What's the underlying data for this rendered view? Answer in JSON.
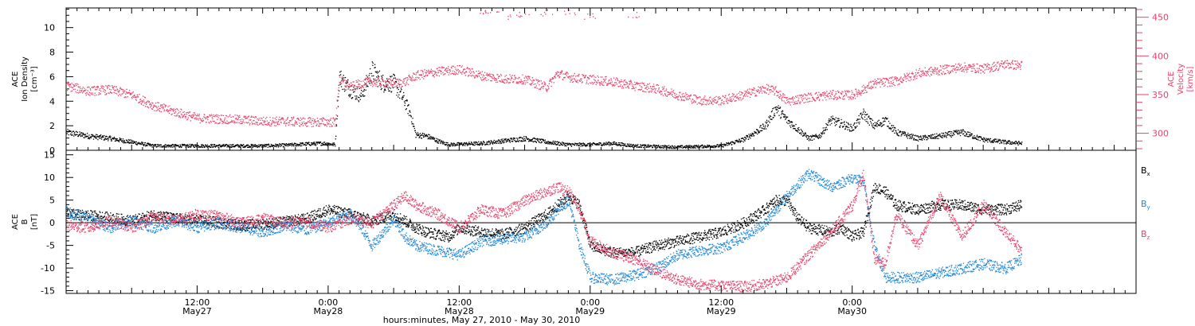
{
  "colors": {
    "black": "#000000",
    "red": "#e8436b",
    "blue": "#1f86d8"
  },
  "chart_data": [
    {
      "type": "scatter",
      "panel": "top",
      "ylabel_lines": [
        "ACE",
        "Ion Density",
        "[cm⁻³]"
      ],
      "y2label_lines": [
        "ACE",
        "Velocity",
        "[km/s]"
      ],
      "ylim": [
        0,
        11.6
      ],
      "yticks": [
        0,
        2,
        4,
        6,
        8,
        10
      ],
      "y2lim": [
        278,
        462
      ],
      "y2ticks": [
        300,
        350,
        400,
        450
      ],
      "series": [
        {
          "key": "density",
          "axis": "left",
          "color": "#000000",
          "density": 3,
          "points": [
            [
              0,
              1.5
            ],
            [
              2,
              1.2
            ],
            [
              4,
              1.0
            ],
            [
              6,
              0.7
            ],
            [
              8,
              0.4
            ],
            [
              10,
              0.4
            ],
            [
              14,
              0.4
            ],
            [
              18,
              0.4
            ],
            [
              20,
              0.45
            ],
            [
              22,
              0.55
            ],
            [
              23.5,
              0.6
            ],
            [
              24.6,
              0.5
            ],
            [
              25,
              6.0
            ],
            [
              26,
              5.0
            ],
            [
              27,
              4.5
            ],
            [
              28,
              6.5
            ],
            [
              29,
              5.5
            ],
            [
              30,
              5.5
            ],
            [
              31,
              4.0
            ],
            [
              31.5,
              3.0
            ],
            [
              32,
              1.3
            ],
            [
              33,
              1.2
            ],
            [
              34,
              0.8
            ],
            [
              35,
              0.5
            ],
            [
              38,
              0.6
            ],
            [
              40,
              0.8
            ],
            [
              42,
              1.0
            ],
            [
              44,
              0.7
            ],
            [
              46,
              0.5
            ],
            [
              48,
              0.5
            ],
            [
              50,
              0.6
            ],
            [
              52,
              0.4
            ],
            [
              56,
              0.3
            ],
            [
              60,
              0.4
            ],
            [
              62,
              0.9
            ],
            [
              64,
              2.0
            ],
            [
              65,
              3.5
            ],
            [
              66,
              2.5
            ],
            [
              68,
              1.0
            ],
            [
              69,
              1.2
            ],
            [
              70,
              2.5
            ],
            [
              71,
              2.2
            ],
            [
              72,
              1.8
            ],
            [
              73,
              3.0
            ],
            [
              74,
              2.0
            ],
            [
              75,
              2.5
            ],
            [
              76,
              1.5
            ],
            [
              78,
              1.0
            ],
            [
              80,
              1.2
            ],
            [
              82,
              1.5
            ],
            [
              84,
              0.9
            ],
            [
              86,
              0.7
            ],
            [
              87.5,
              0.6
            ]
          ]
        },
        {
          "key": "velocity",
          "axis": "right",
          "color": "#e8436b",
          "density": 3,
          "points": [
            [
              0,
              362
            ],
            [
              2,
              355
            ],
            [
              4,
              357
            ],
            [
              6,
              350
            ],
            [
              8,
              336
            ],
            [
              10,
              328
            ],
            [
              12,
              320
            ],
            [
              14,
              319
            ],
            [
              16,
              318
            ],
            [
              18,
              316
            ],
            [
              20,
              316
            ],
            [
              22,
              315
            ],
            [
              24.6,
              315
            ],
            [
              25,
              370
            ],
            [
              26,
              360
            ],
            [
              27,
              365
            ],
            [
              28,
              367
            ],
            [
              29,
              366
            ],
            [
              30,
              365
            ],
            [
              31,
              367
            ],
            [
              32,
              375
            ],
            [
              34,
              380
            ],
            [
              36,
              383
            ],
            [
              38,
              375
            ],
            [
              40,
              371
            ],
            [
              42,
              370
            ],
            [
              44,
              360
            ],
            [
              45,
              378
            ],
            [
              46,
              373
            ],
            [
              48,
              370
            ],
            [
              50,
              367
            ],
            [
              52,
              362
            ],
            [
              54,
              358
            ],
            [
              56,
              350
            ],
            [
              58,
              343
            ],
            [
              60,
              343
            ],
            [
              62,
              350
            ],
            [
              64,
              358
            ],
            [
              65,
              355
            ],
            [
              66,
              342
            ],
            [
              68,
              347
            ],
            [
              70,
              350
            ],
            [
              72,
              350
            ],
            [
              73,
              357
            ],
            [
              74,
              365
            ],
            [
              76,
              368
            ],
            [
              78,
              378
            ],
            [
              80,
              382
            ],
            [
              82,
              386
            ],
            [
              84,
              384
            ],
            [
              86,
              390
            ],
            [
              87.5,
              388
            ]
          ]
        }
      ],
      "sparse_points": [
        [
          38,
          457
        ],
        [
          39,
          455
        ],
        [
          41,
          450
        ],
        [
          42,
          455
        ],
        [
          44,
          456
        ],
        [
          46,
          457
        ],
        [
          48,
          452
        ],
        [
          52,
          453
        ]
      ]
    },
    {
      "type": "scatter",
      "panel": "bottom",
      "ylabel_lines": [
        "ACE",
        "B",
        "[nT]"
      ],
      "ylim": [
        -15.6,
        16
      ],
      "yticks": [
        -15,
        -10,
        -5,
        0,
        5,
        10,
        15
      ],
      "series": [
        {
          "name": "Bx",
          "color": "#000000",
          "density": 4,
          "points": [
            [
              0,
              2
            ],
            [
              3,
              1.5
            ],
            [
              6,
              0.5
            ],
            [
              8,
              1.8
            ],
            [
              10,
              1
            ],
            [
              13,
              0.5
            ],
            [
              16,
              -0.5
            ],
            [
              19,
              0
            ],
            [
              22,
              1
            ],
            [
              24,
              3
            ],
            [
              26,
              2
            ],
            [
              28,
              0.5
            ],
            [
              30,
              2
            ],
            [
              32,
              -1
            ],
            [
              33,
              -2
            ],
            [
              35,
              -3
            ],
            [
              36,
              -1
            ],
            [
              38,
              -2
            ],
            [
              40,
              -2.5
            ],
            [
              42,
              -1
            ],
            [
              44,
              2
            ],
            [
              46,
              6
            ],
            [
              47,
              4
            ],
            [
              48,
              -5
            ],
            [
              50,
              -6.5
            ],
            [
              52,
              -6.5
            ],
            [
              54,
              -5
            ],
            [
              56,
              -4
            ],
            [
              58,
              -3
            ],
            [
              60,
              -2
            ],
            [
              62,
              0
            ],
            [
              64,
              3
            ],
            [
              65,
              5
            ],
            [
              66,
              5
            ],
            [
              67,
              1
            ],
            [
              68,
              -1
            ],
            [
              70,
              -2
            ],
            [
              71,
              -1
            ],
            [
              72,
              -3
            ],
            [
              73,
              -2
            ],
            [
              74,
              8
            ],
            [
              75,
              7
            ],
            [
              76,
              4
            ],
            [
              78,
              3
            ],
            [
              80,
              4
            ],
            [
              82,
              4
            ],
            [
              84,
              3
            ],
            [
              86,
              3
            ],
            [
              87.5,
              4
            ]
          ]
        },
        {
          "name": "By",
          "color": "#1f86d8",
          "density": 4,
          "points": [
            [
              0,
              2.5
            ],
            [
              2,
              1
            ],
            [
              4,
              -1
            ],
            [
              6,
              0.5
            ],
            [
              8,
              -1
            ],
            [
              10,
              0.5
            ],
            [
              12,
              -1
            ],
            [
              14,
              0
            ],
            [
              16,
              -1
            ],
            [
              18,
              -2
            ],
            [
              20,
              -0.5
            ],
            [
              22,
              -1.5
            ],
            [
              24,
              0
            ],
            [
              26,
              2
            ],
            [
              27,
              -1
            ],
            [
              28,
              -5
            ],
            [
              30,
              1
            ],
            [
              31,
              -3
            ],
            [
              32,
              -5
            ],
            [
              34,
              -6
            ],
            [
              36,
              -7
            ],
            [
              38,
              -4
            ],
            [
              40,
              -3.5
            ],
            [
              42,
              -3
            ],
            [
              44,
              0
            ],
            [
              45,
              3
            ],
            [
              46,
              5
            ],
            [
              47,
              -5
            ],
            [
              48,
              -12
            ],
            [
              50,
              -12.5
            ],
            [
              52,
              -11.5
            ],
            [
              54,
              -10
            ],
            [
              56,
              -7
            ],
            [
              58,
              -6
            ],
            [
              60,
              -5.5
            ],
            [
              62,
              -3
            ],
            [
              64,
              0
            ],
            [
              66,
              6
            ],
            [
              68,
              11
            ],
            [
              70,
              8
            ],
            [
              72,
              10
            ],
            [
              73,
              9
            ],
            [
              74,
              -5
            ],
            [
              75,
              -12
            ],
            [
              76,
              -12
            ],
            [
              78,
              -12
            ],
            [
              80,
              -11
            ],
            [
              82,
              -10
            ],
            [
              84,
              -9
            ],
            [
              86,
              -10
            ],
            [
              87.5,
              -8
            ]
          ]
        },
        {
          "name": "Bz",
          "color": "#e8436b",
          "density": 4,
          "points": [
            [
              0,
              -0.5
            ],
            [
              2,
              -1
            ],
            [
              4,
              0.5
            ],
            [
              6,
              -1
            ],
            [
              8,
              1.5
            ],
            [
              10,
              0.5
            ],
            [
              12,
              2
            ],
            [
              14,
              1.5
            ],
            [
              16,
              0
            ],
            [
              18,
              1
            ],
            [
              20,
              0
            ],
            [
              22,
              0.5
            ],
            [
              24,
              -1
            ],
            [
              26,
              1
            ],
            [
              28,
              0
            ],
            [
              30,
              4
            ],
            [
              31,
              6
            ],
            [
              32,
              4
            ],
            [
              34,
              2
            ],
            [
              36,
              -1
            ],
            [
              38,
              3
            ],
            [
              40,
              2
            ],
            [
              42,
              5
            ],
            [
              44,
              7
            ],
            [
              45,
              8
            ],
            [
              46,
              7
            ],
            [
              47,
              3
            ],
            [
              48,
              -4
            ],
            [
              50,
              -6.5
            ],
            [
              52,
              -8
            ],
            [
              54,
              -10.5
            ],
            [
              56,
              -12.5
            ],
            [
              58,
              -13.5
            ],
            [
              60,
              -13.8
            ],
            [
              62,
              -14
            ],
            [
              64,
              -13.5
            ],
            [
              66,
              -12
            ],
            [
              68,
              -7
            ],
            [
              70,
              -2
            ],
            [
              72,
              4
            ],
            [
              73,
              11
            ],
            [
              74,
              -8
            ],
            [
              75,
              -9
            ],
            [
              76,
              2
            ],
            [
              78,
              -5
            ],
            [
              80,
              6
            ],
            [
              82,
              -3
            ],
            [
              84,
              4
            ],
            [
              86,
              -2
            ],
            [
              87.5,
              -6
            ]
          ]
        }
      ],
      "legend": [
        {
          "base": "B",
          "sub": "x",
          "color": "#000000"
        },
        {
          "base": "B",
          "sub": "y",
          "color": "#1f86d8"
        },
        {
          "base": "B",
          "sub": "z",
          "color": "#e8436b"
        }
      ]
    }
  ],
  "x_axis": {
    "hour_range": [
      0,
      98
    ],
    "major_ticks": [
      {
        "hour": 12,
        "line1": "12:00",
        "line2": "May27"
      },
      {
        "hour": 24,
        "line1": "0:00",
        "line2": "May28"
      },
      {
        "hour": 36,
        "line1": "12:00",
        "line2": "May28"
      },
      {
        "hour": 48,
        "line1": "0:00",
        "line2": "May29"
      },
      {
        "hour": 60,
        "line1": "12:00",
        "line2": "May29"
      },
      {
        "hour": 72,
        "line1": "0:00",
        "line2": "May30"
      }
    ],
    "title": "hours:minutes, May 27, 2010 - May 30, 2010"
  }
}
